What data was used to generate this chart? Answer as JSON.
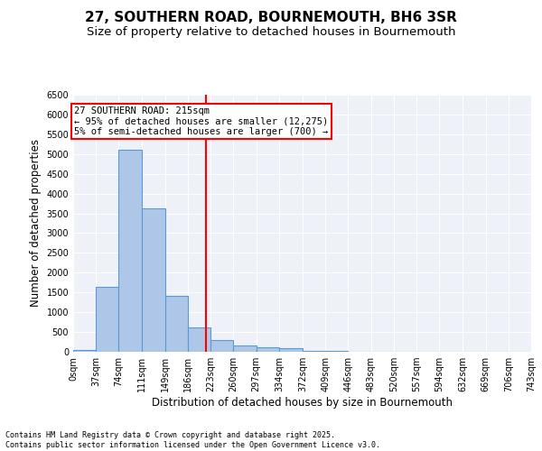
{
  "title": "27, SOUTHERN ROAD, BOURNEMOUTH, BH6 3SR",
  "subtitle": "Size of property relative to detached houses in Bournemouth",
  "xlabel": "Distribution of detached houses by size in Bournemouth",
  "ylabel": "Number of detached properties",
  "bar_color": "#aec6e8",
  "bar_edge_color": "#5b9bd5",
  "background_color": "#eef2f8",
  "vline_x": 215,
  "vline_color": "red",
  "annotation_line1": "27 SOUTHERN ROAD: 215sqm",
  "annotation_line2": "← 95% of detached houses are smaller (12,275)",
  "annotation_line3": "5% of semi-detached houses are larger (700) →",
  "annotation_box_color": "white",
  "annotation_box_edge": "red",
  "footer": "Contains HM Land Registry data © Crown copyright and database right 2025.\nContains public sector information licensed under the Open Government Licence v3.0.",
  "bins": [
    0,
    37,
    74,
    111,
    149,
    186,
    223,
    260,
    297,
    334,
    372,
    409,
    446,
    483,
    520,
    557,
    594,
    632,
    669,
    706,
    743
  ],
  "counts": [
    50,
    1650,
    5100,
    3620,
    1420,
    610,
    300,
    155,
    110,
    85,
    30,
    15,
    5,
    0,
    0,
    0,
    0,
    0,
    0,
    0
  ],
  "ylim": [
    0,
    6500
  ],
  "yticks": [
    0,
    500,
    1000,
    1500,
    2000,
    2500,
    3000,
    3500,
    4000,
    4500,
    5000,
    5500,
    6000,
    6500
  ],
  "title_fontsize": 11,
  "subtitle_fontsize": 9.5,
  "axis_label_fontsize": 8.5,
  "tick_fontsize": 7,
  "footer_fontsize": 6,
  "annotation_fontsize": 7.5
}
